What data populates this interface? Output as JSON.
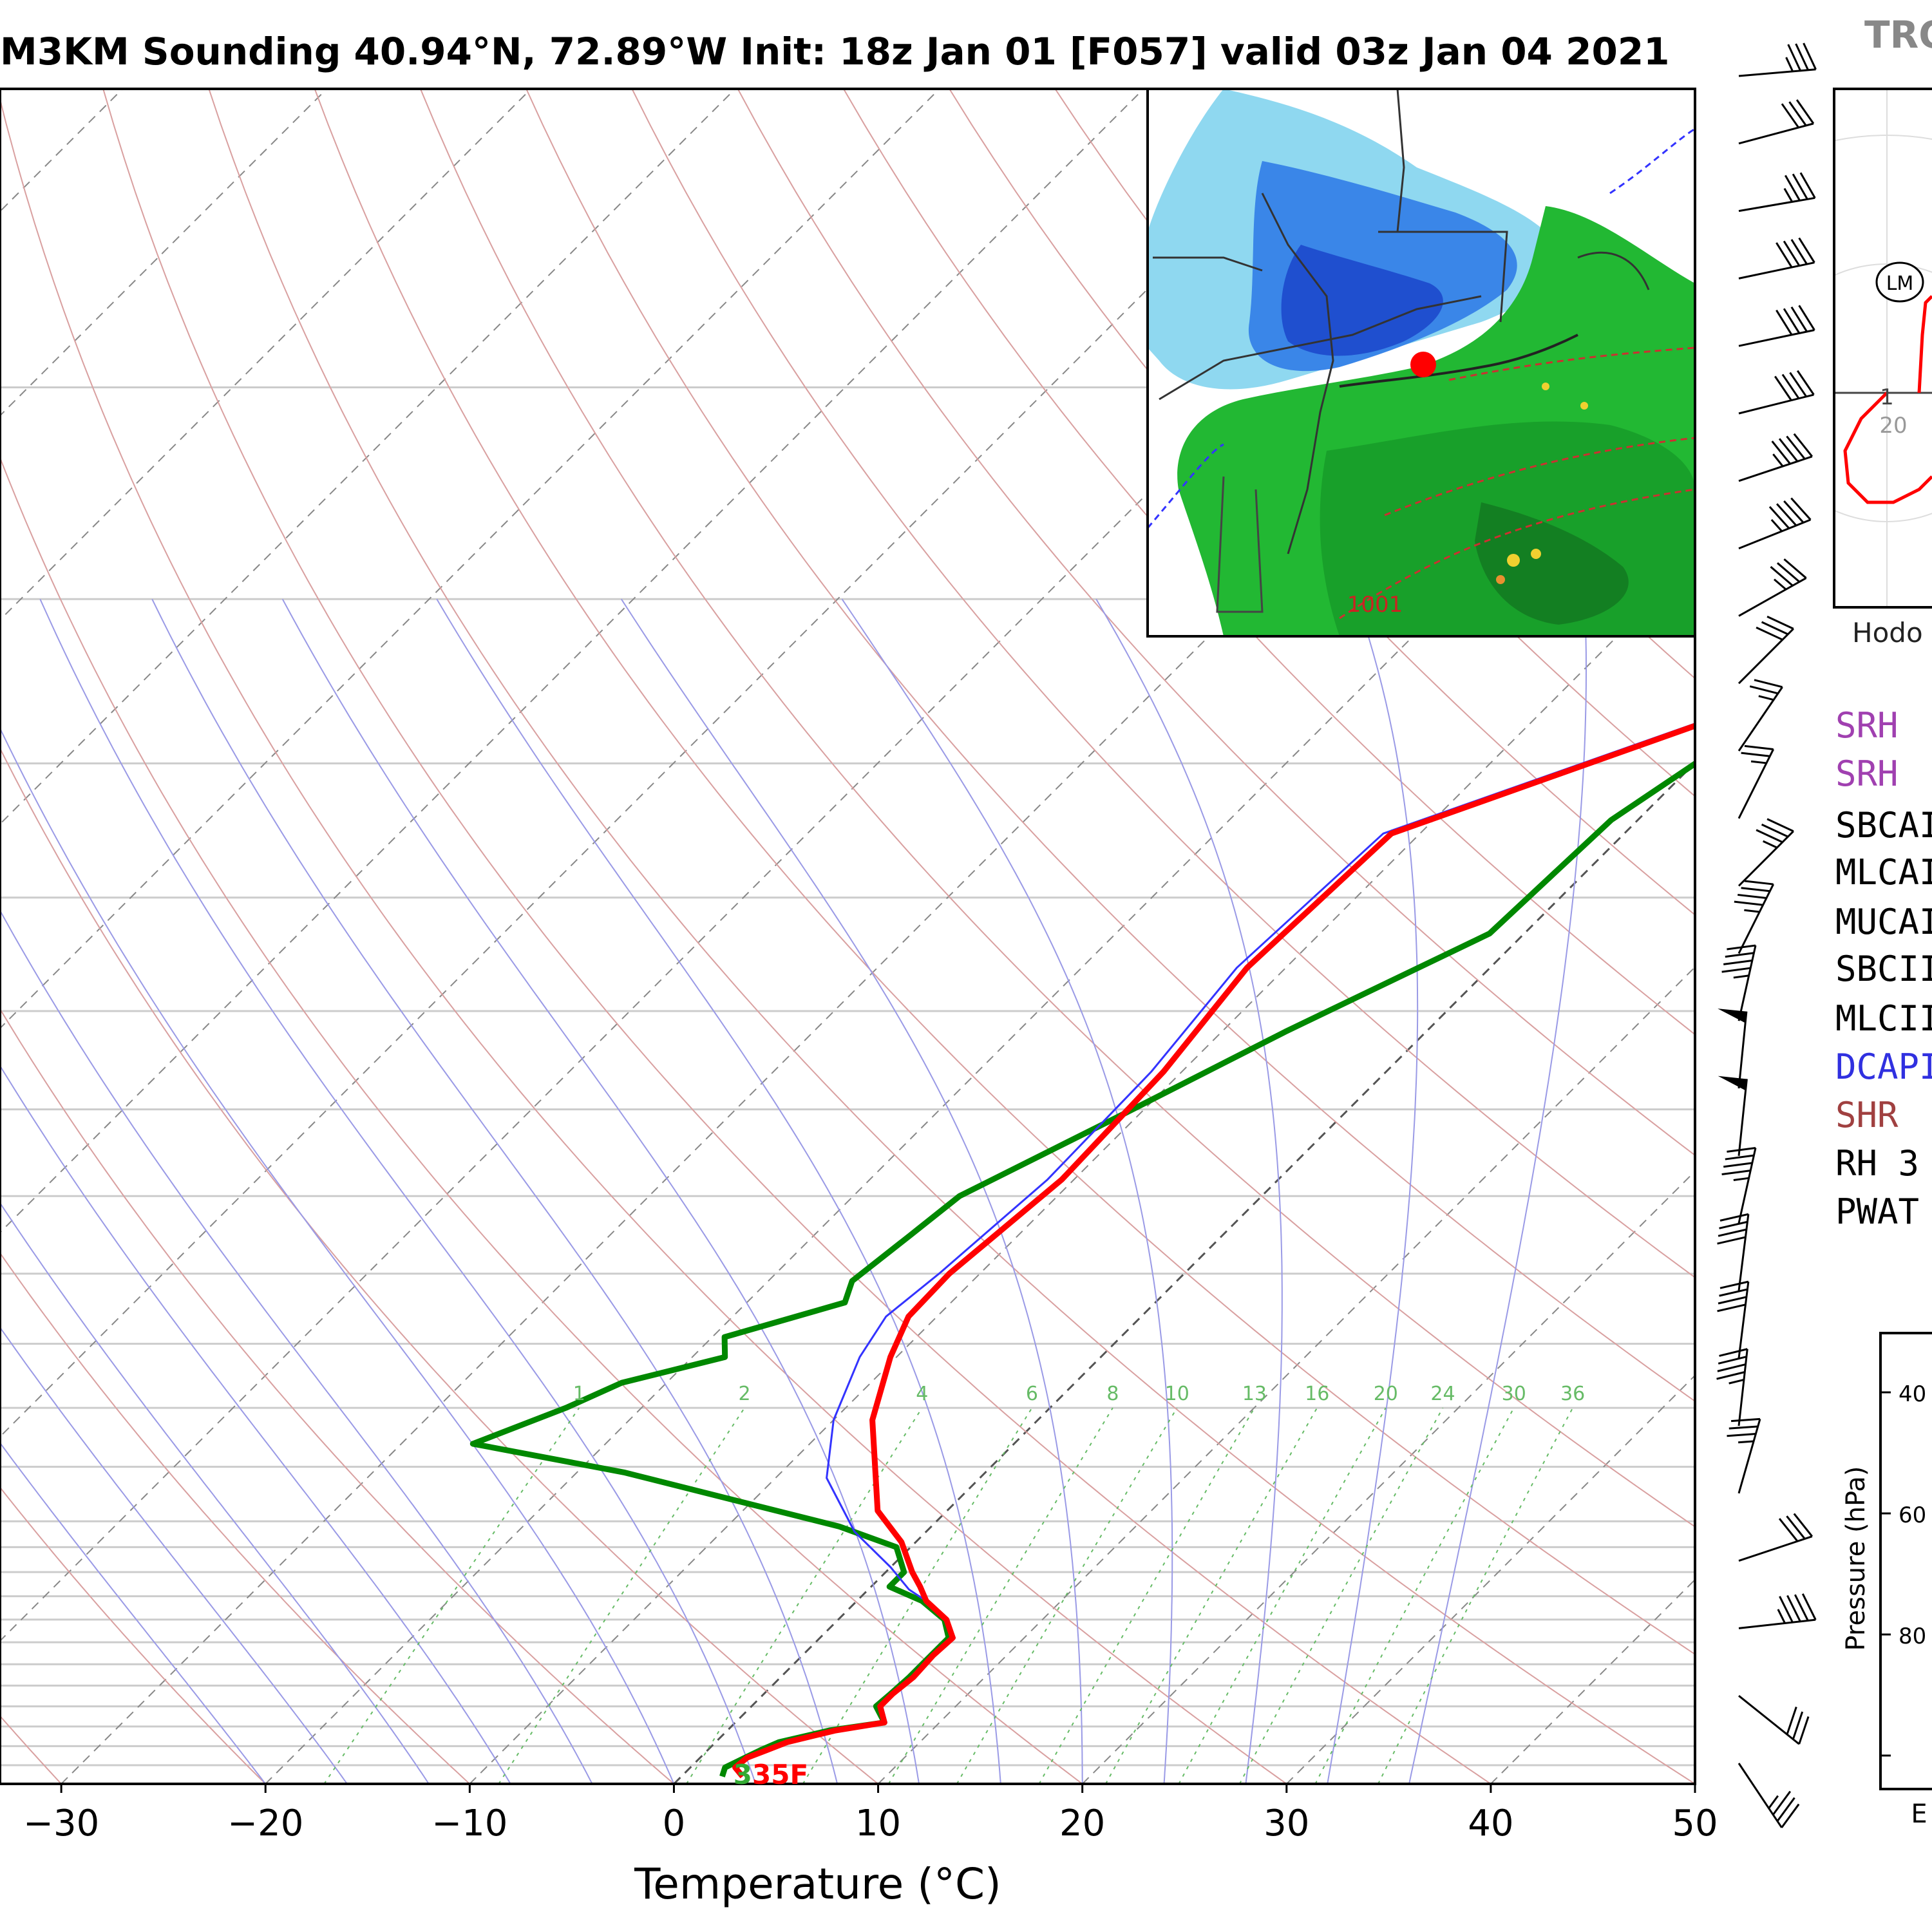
{
  "title": "M3KM Sounding 40.94°N, 72.89°W Init: 18z Jan 01 [F057] valid 03z Jan 04 2021",
  "trop_label": "TRO",
  "colors": {
    "temperature": "#ff0000",
    "dewpoint": "#008800",
    "virtual_temperature": "#3333ff",
    "dry_adiabat": "#d9a0a0",
    "moist_adiabat": "#9a9ae6",
    "mixing_ratio": "#66bb66",
    "isotherm": "#888888",
    "isobar": "#cccccc"
  },
  "chart_data": {
    "type": "line",
    "title": "",
    "xlabel": "Temperature (°C)",
    "ylabel": "",
    "xlim": [
      -33,
      50
    ],
    "ylim": [
      1000,
      100
    ],
    "y_scale": "log",
    "x_ticks": [
      "−30",
      "−20",
      "−10",
      "0",
      "10",
      "20",
      "30",
      "40",
      "50"
    ],
    "isobars": [
      1000,
      975,
      950,
      925,
      900,
      875,
      850,
      825,
      800,
      775,
      750,
      725,
      700,
      650,
      600,
      550,
      500,
      450,
      400,
      350,
      300,
      250,
      200,
      150,
      100
    ],
    "mixing_ratio_labels": [
      "1",
      "2",
      "4",
      "6",
      "8",
      "10",
      "13",
      "16",
      "20",
      "24",
      "30",
      "36"
    ],
    "surface_label": {
      "dewpoint_part": "3",
      "temperature_part": "35F"
    },
    "series": [
      {
        "name": "",
        "role": "temperature",
        "points": [
          [
            3.0,
            990
          ],
          [
            2.2,
            978
          ],
          [
            2.3,
            965
          ],
          [
            2.9,
            955
          ],
          [
            3.5,
            945
          ],
          [
            5.3,
            930
          ],
          [
            7.3,
            920
          ],
          [
            6.3,
            900
          ],
          [
            6.3,
            885
          ],
          [
            6.5,
            865
          ],
          [
            6.4,
            840
          ],
          [
            6.5,
            820
          ],
          [
            5.3,
            800
          ],
          [
            3.4,
            780
          ],
          [
            2.4,
            765
          ],
          [
            1.3,
            750
          ],
          [
            -0.7,
            720
          ],
          [
            -3.4,
            690
          ],
          [
            -8.1,
            610
          ],
          [
            -10.3,
            560
          ],
          [
            -11.4,
            530
          ],
          [
            -11.5,
            500
          ],
          [
            -10.6,
            440
          ],
          [
            -10.9,
            380
          ],
          [
            -11.9,
            330
          ],
          [
            -11.4,
            275
          ],
          [
            -1.1,
            235
          ],
          [
            -3.5,
            200
          ],
          [
            -4.2,
            170
          ],
          [
            -5.0,
            147
          ]
        ]
      },
      {
        "name": "",
        "role": "dewpoint",
        "points": [
          [
            2.0,
            990
          ],
          [
            1.7,
            978
          ],
          [
            2.2,
            965
          ],
          [
            2.6,
            955
          ],
          [
            3.1,
            945
          ],
          [
            5.0,
            930
          ],
          [
            7.3,
            920
          ],
          [
            6.1,
            900
          ],
          [
            6.2,
            885
          ],
          [
            6.3,
            865
          ],
          [
            6.3,
            840
          ],
          [
            6.3,
            820
          ],
          [
            5.2,
            800
          ],
          [
            3.2,
            780
          ],
          [
            0.9,
            765
          ],
          [
            0.9,
            750
          ],
          [
            -0.7,
            725
          ],
          [
            -4.5,
            705
          ],
          [
            -17.7,
            655
          ],
          [
            -26.5,
            630
          ],
          [
            -23.7,
            600
          ],
          [
            -22.2,
            580
          ],
          [
            -18.4,
            560
          ],
          [
            -19.4,
            545
          ],
          [
            -15.2,
            520
          ],
          [
            -15.9,
            505
          ],
          [
            -15.3,
            475
          ],
          [
            -14.8,
            450
          ],
          [
            -11.0,
            405
          ],
          [
            -6.9,
            360
          ],
          [
            -1.7,
            315
          ],
          [
            -1.3,
            270
          ],
          [
            0.4,
            245
          ],
          [
            4.4,
            220
          ],
          [
            4.8,
            195
          ],
          [
            8.3,
            160
          ],
          [
            13.8,
            147
          ]
        ]
      },
      {
        "name": "",
        "role": "virtual_temperature",
        "points": [
          [
            3.0,
            990
          ],
          [
            2.2,
            978
          ],
          [
            2.4,
            965
          ],
          [
            3.0,
            955
          ],
          [
            3.6,
            945
          ],
          [
            5.4,
            930
          ],
          [
            7.4,
            920
          ],
          [
            6.4,
            900
          ],
          [
            6.4,
            885
          ],
          [
            6.6,
            865
          ],
          [
            6.5,
            840
          ],
          [
            6.6,
            820
          ],
          [
            5.3,
            800
          ],
          [
            3.4,
            780
          ],
          [
            2.0,
            768
          ],
          [
            0.0,
            745
          ],
          [
            -3.5,
            710
          ],
          [
            -7.5,
            660
          ],
          [
            -10.0,
            610
          ],
          [
            -11.8,
            560
          ],
          [
            -12.5,
            530
          ],
          [
            -12.0,
            500
          ],
          [
            -11.3,
            440
          ],
          [
            -11.5,
            380
          ],
          [
            -12.4,
            330
          ],
          [
            -11.8,
            275
          ],
          [
            -1.4,
            235
          ],
          [
            -3.8,
            200
          ],
          [
            -4.4,
            170
          ],
          [
            -5.2,
            147
          ]
        ]
      }
    ]
  },
  "wind_barbs": [
    {
      "u": -35,
      "v": 3
    },
    {
      "u": -30,
      "v": 8
    },
    {
      "u": -35,
      "v": 6
    },
    {
      "u": -38,
      "v": 8
    },
    {
      "u": -38,
      "v": 8
    },
    {
      "u": -40,
      "v": 10
    },
    {
      "u": -42,
      "v": 14
    },
    {
      "u": -40,
      "v": 16
    },
    {
      "u": -32,
      "v": 18
    },
    {
      "u": -20,
      "v": 20
    },
    {
      "u": -15,
      "v": 22
    },
    {
      "u": -12,
      "v": 24
    },
    {
      "u": -25,
      "v": 25
    },
    {
      "u": -20,
      "v": 40
    },
    {
      "u": -10,
      "v": 45
    },
    {
      "u": -5,
      "v": 50
    },
    {
      "u": -5,
      "v": 48
    },
    {
      "u": -10,
      "v": 45
    },
    {
      "u": -5,
      "v": 40
    },
    {
      "u": -5,
      "v": 40
    },
    {
      "u": -5,
      "v": 45
    },
    {
      "u": -10,
      "v": 35
    },
    {
      "u": -30,
      "v": 10
    },
    {
      "u": -45,
      "v": 5
    },
    {
      "u": -25,
      "v": -20
    },
    {
      "u": -20,
      "v": -30
    }
  ],
  "inset_map": {
    "point_color": "#ff0000",
    "isobar_label": "1001"
  },
  "hodograph": {
    "storm_motion_label": "LM",
    "ring_labels": [
      "1",
      "20"
    ],
    "caption": "Hodo"
  },
  "indices": [
    {
      "label": "SRH",
      "color": "#a040b0"
    },
    {
      "label": "SRH",
      "color": "#a040b0"
    },
    {
      "label": "SBCAI",
      "color": "#000000"
    },
    {
      "label": "MLCAI",
      "color": "#000000"
    },
    {
      "label": "MUCAI",
      "color": "#000000"
    },
    {
      "label": "SBCII",
      "color": "#000000"
    },
    {
      "label": "MLCII",
      "color": "#000000"
    },
    {
      "label": "DCAPI",
      "color": "#3030e0"
    },
    {
      "label": "SHR",
      "color": "#a04040"
    },
    {
      "label": "RH 3",
      "color": "#000000"
    },
    {
      "label": "PWAT",
      "color": "#000000"
    }
  ],
  "small_panel": {
    "ylabel": "Pressure (hPa)",
    "ticks": [
      "40",
      "60",
      "80"
    ],
    "footer": "E"
  }
}
